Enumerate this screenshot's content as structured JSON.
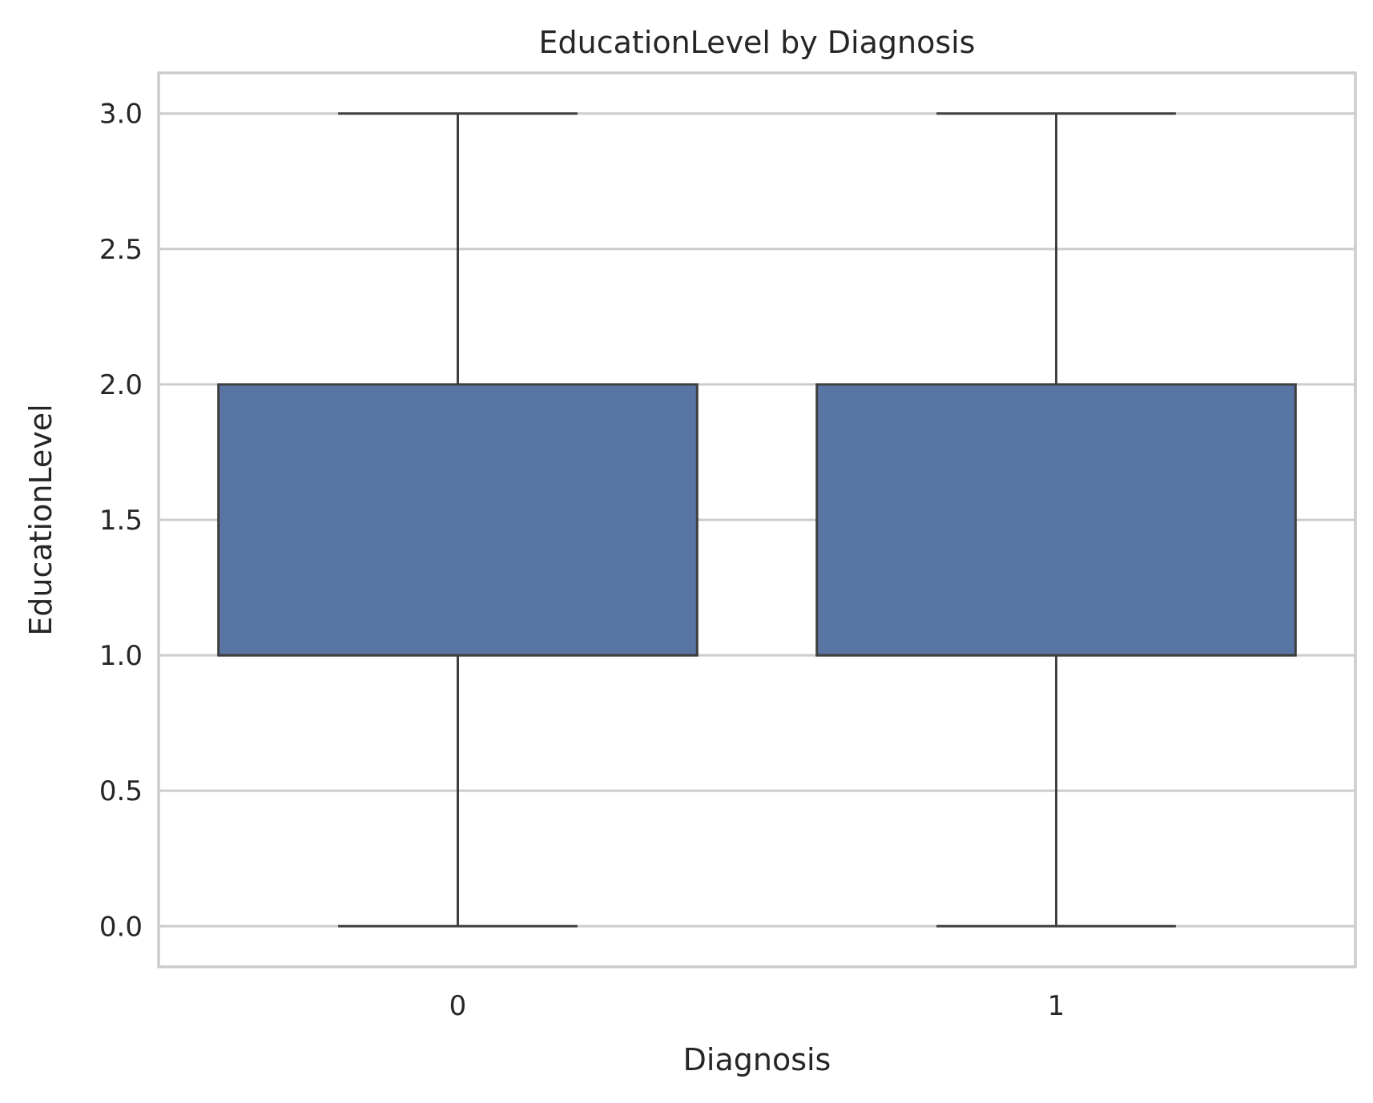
{
  "chart_data": {
    "type": "box",
    "title": "EducationLevel by Diagnosis",
    "xlabel": "Diagnosis",
    "ylabel": "EducationLevel",
    "categories": [
      "0",
      "1"
    ],
    "boxes": [
      {
        "category": "0",
        "whisker_low": 0.0,
        "q1": 1.0,
        "median": 1.0,
        "q3": 2.0,
        "whisker_high": 3.0
      },
      {
        "category": "1",
        "whisker_low": 0.0,
        "q1": 1.0,
        "median": 1.0,
        "q3": 2.0,
        "whisker_high": 3.0
      }
    ],
    "yticks": [
      "0.0",
      "0.5",
      "1.0",
      "1.5",
      "2.0",
      "2.5",
      "3.0"
    ],
    "ylim": [
      -0.15,
      3.15
    ],
    "grid": "horizontal",
    "box_color": "#5975a4",
    "line_color": "#3f3f3f",
    "grid_color": "#cccccc"
  }
}
